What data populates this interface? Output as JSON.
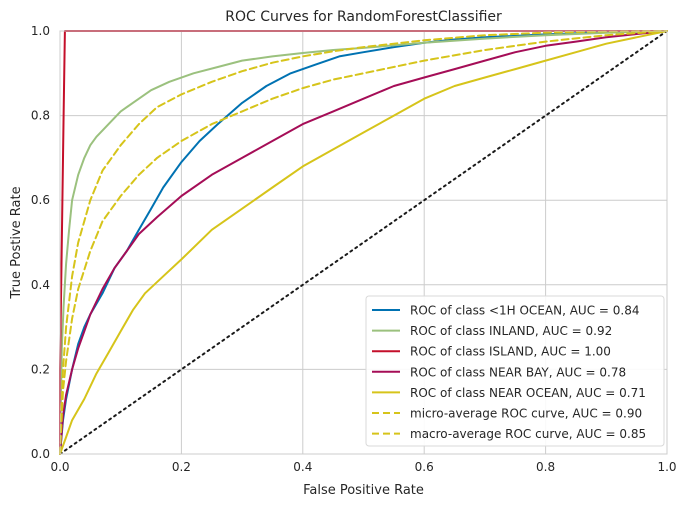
{
  "chart_data": {
    "type": "line",
    "title": "ROC Curves for RandomForestClassifier",
    "xlabel": "False Positive Rate",
    "ylabel": "True Postive Rate",
    "xlim": [
      0,
      1
    ],
    "ylim": [
      0,
      1
    ],
    "xticks": [
      "0.0",
      "0.2",
      "0.4",
      "0.6",
      "0.8",
      "1.0"
    ],
    "yticks": [
      "0.0",
      "0.2",
      "0.4",
      "0.6",
      "0.8",
      "1.0"
    ],
    "grid": true,
    "legend_position": "lower-right",
    "series": [
      {
        "name": "ROC of class <1H OCEAN, AUC = 0.84",
        "color": "#0072B2",
        "dash": "solid",
        "x": [
          0,
          0.005,
          0.01,
          0.02,
          0.03,
          0.04,
          0.05,
          0.07,
          0.09,
          0.11,
          0.13,
          0.15,
          0.17,
          0.2,
          0.23,
          0.26,
          0.3,
          0.34,
          0.38,
          0.42,
          0.46,
          0.5,
          0.55,
          0.6,
          0.65,
          0.7,
          0.8,
          0.9,
          1.0
        ],
        "y": [
          0,
          0.08,
          0.13,
          0.2,
          0.26,
          0.3,
          0.33,
          0.38,
          0.44,
          0.48,
          0.53,
          0.58,
          0.63,
          0.69,
          0.74,
          0.78,
          0.83,
          0.87,
          0.9,
          0.92,
          0.94,
          0.95,
          0.962,
          0.972,
          0.98,
          0.985,
          0.992,
          0.997,
          1.0
        ]
      },
      {
        "name": "ROC of class INLAND, AUC = 0.92",
        "color": "#9BC17E",
        "dash": "solid",
        "x": [
          0,
          0.003,
          0.006,
          0.01,
          0.015,
          0.02,
          0.03,
          0.04,
          0.05,
          0.06,
          0.08,
          0.1,
          0.12,
          0.15,
          0.18,
          0.22,
          0.26,
          0.3,
          0.35,
          0.4,
          0.45,
          0.5,
          0.6,
          0.7,
          0.8,
          0.9,
          1.0
        ],
        "y": [
          0,
          0.25,
          0.35,
          0.45,
          0.53,
          0.6,
          0.66,
          0.7,
          0.73,
          0.75,
          0.78,
          0.81,
          0.83,
          0.86,
          0.88,
          0.9,
          0.915,
          0.93,
          0.94,
          0.948,
          0.955,
          0.96,
          0.972,
          0.982,
          0.99,
          0.996,
          1.0
        ]
      },
      {
        "name": "ROC of class ISLAND, AUC = 1.00",
        "color": "#C40F2A",
        "dash": "solid",
        "x": [
          0,
          0.0,
          0.006,
          0.008,
          1.0
        ],
        "y": [
          0,
          0.2,
          0.8,
          1.0,
          1.0
        ]
      },
      {
        "name": "ROC of class NEAR BAY, AUC = 0.78",
        "color": "#A50D57",
        "dash": "solid",
        "x": [
          0,
          0.005,
          0.01,
          0.02,
          0.03,
          0.04,
          0.05,
          0.07,
          0.09,
          0.11,
          0.13,
          0.16,
          0.2,
          0.25,
          0.3,
          0.35,
          0.4,
          0.45,
          0.5,
          0.55,
          0.6,
          0.65,
          0.7,
          0.75,
          0.8,
          0.85,
          0.9,
          0.95,
          1.0
        ],
        "y": [
          0,
          0.09,
          0.14,
          0.2,
          0.25,
          0.29,
          0.33,
          0.39,
          0.44,
          0.48,
          0.52,
          0.56,
          0.61,
          0.66,
          0.7,
          0.74,
          0.78,
          0.81,
          0.84,
          0.87,
          0.89,
          0.91,
          0.93,
          0.95,
          0.965,
          0.975,
          0.985,
          0.993,
          1.0
        ]
      },
      {
        "name": "ROC of class NEAR OCEAN, AUC = 0.71",
        "color": "#D6C41A",
        "dash": "solid",
        "x": [
          0,
          0.01,
          0.02,
          0.04,
          0.06,
          0.08,
          0.1,
          0.12,
          0.14,
          0.17,
          0.2,
          0.25,
          0.3,
          0.35,
          0.4,
          0.45,
          0.5,
          0.55,
          0.6,
          0.65,
          0.7,
          0.75,
          0.8,
          0.85,
          0.9,
          0.95,
          1.0
        ],
        "y": [
          0,
          0.04,
          0.08,
          0.13,
          0.19,
          0.24,
          0.29,
          0.34,
          0.38,
          0.42,
          0.46,
          0.53,
          0.58,
          0.63,
          0.68,
          0.72,
          0.76,
          0.8,
          0.84,
          0.87,
          0.89,
          0.91,
          0.93,
          0.95,
          0.97,
          0.985,
          1.0
        ]
      },
      {
        "name": "micro-average ROC curve, AUC = 0.90",
        "color": "#D6C41A",
        "dash": "dashed",
        "x": [
          0,
          0.005,
          0.01,
          0.02,
          0.03,
          0.05,
          0.07,
          0.1,
          0.13,
          0.16,
          0.2,
          0.25,
          0.3,
          0.35,
          0.4,
          0.45,
          0.5,
          0.6,
          0.7,
          0.8,
          0.9,
          1.0
        ],
        "y": [
          0,
          0.2,
          0.3,
          0.42,
          0.5,
          0.6,
          0.67,
          0.73,
          0.78,
          0.82,
          0.85,
          0.88,
          0.905,
          0.925,
          0.94,
          0.952,
          0.962,
          0.978,
          0.99,
          0.996,
          0.999,
          1.0
        ]
      },
      {
        "name": "macro-average ROC curve, AUC = 0.85",
        "color": "#D6C41A",
        "dash": "dashed",
        "x": [
          0,
          0.005,
          0.01,
          0.02,
          0.03,
          0.05,
          0.07,
          0.1,
          0.13,
          0.16,
          0.2,
          0.25,
          0.3,
          0.35,
          0.4,
          0.45,
          0.5,
          0.6,
          0.7,
          0.8,
          0.9,
          1.0
        ],
        "y": [
          0,
          0.15,
          0.22,
          0.32,
          0.39,
          0.48,
          0.55,
          0.61,
          0.66,
          0.7,
          0.74,
          0.78,
          0.81,
          0.84,
          0.865,
          0.885,
          0.9,
          0.93,
          0.955,
          0.975,
          0.99,
          1.0
        ]
      }
    ],
    "baseline": {
      "x": [
        0,
        1
      ],
      "y": [
        0,
        1
      ],
      "color": "#1a1a1a",
      "dash": "dotted"
    }
  }
}
